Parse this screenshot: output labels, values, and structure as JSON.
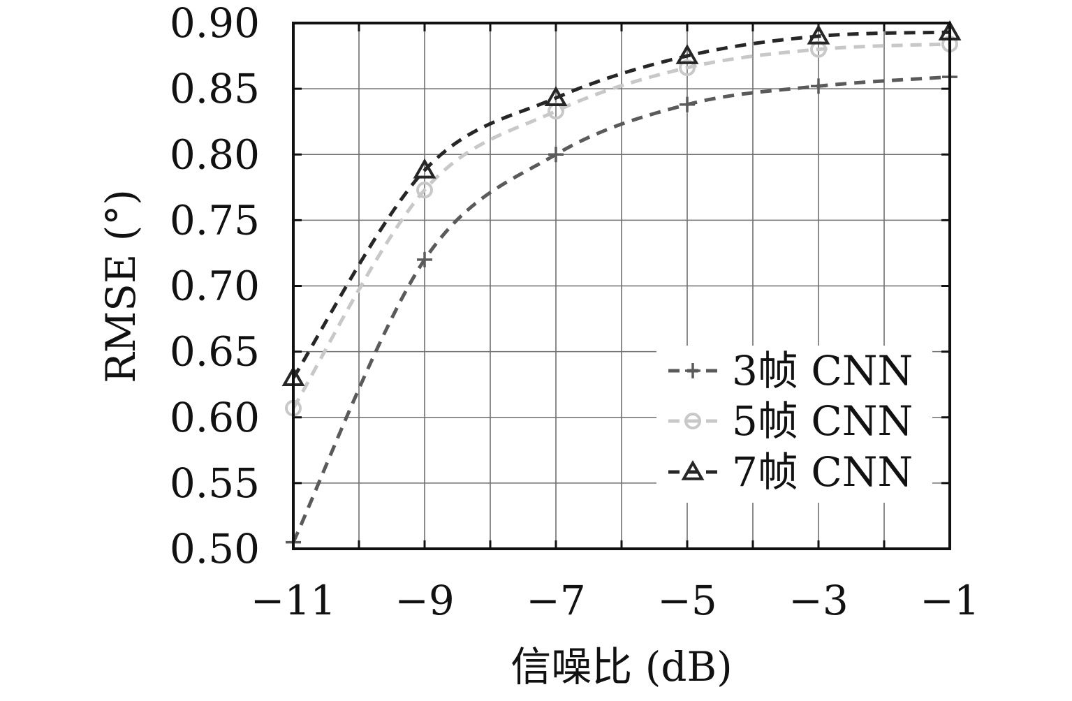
{
  "chart_data": {
    "type": "line",
    "xlabel": "信噪比 (dB)",
    "ylabel": "RMSE (°)",
    "x": [
      -11,
      -9,
      -7,
      -5,
      -3,
      -1
    ],
    "xlim": [
      -11,
      -1
    ],
    "ylim": [
      0.5,
      0.9
    ],
    "xticks": [
      "−11",
      "−9",
      "−7",
      "−5",
      "−3",
      "−1"
    ],
    "yticks": [
      "0.50",
      "0.55",
      "0.60",
      "0.65",
      "0.70",
      "0.75",
      "0.80",
      "0.85",
      "0.90"
    ],
    "grid": true,
    "legend_position": "lower-right",
    "series": [
      {
        "name": "3帧 CNN",
        "values": [
          0.505,
          0.72,
          0.8,
          0.838,
          0.852,
          0.859
        ],
        "color": "#5a5a5a",
        "marker": "plus"
      },
      {
        "name": "5帧 CNN",
        "values": [
          0.607,
          0.773,
          0.833,
          0.866,
          0.88,
          0.884
        ],
        "color": "#c8c8c8",
        "marker": "circle"
      },
      {
        "name": "7帧 CNN",
        "values": [
          0.63,
          0.788,
          0.843,
          0.875,
          0.89,
          0.893
        ],
        "color": "#262626",
        "marker": "triangle"
      }
    ]
  }
}
